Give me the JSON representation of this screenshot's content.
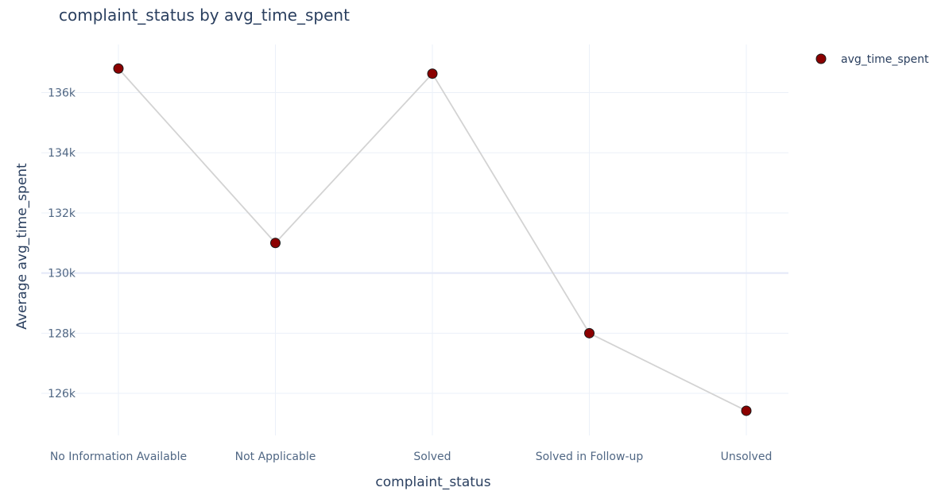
{
  "chart_data": {
    "type": "line",
    "title": "complaint_status by avg_time_spent",
    "xlabel": "complaint_status",
    "ylabel": "Average avg_time_spent",
    "categories": [
      "No Information Available",
      "Not Applicable",
      "Solved",
      "Solved in Follow-up",
      "Unsolved"
    ],
    "series": [
      {
        "name": "avg_time_spent",
        "values": [
          136800,
          131000,
          136630,
          128000,
          125420
        ]
      }
    ],
    "ylim": [
      124600,
      137600
    ],
    "yticks": [
      126000,
      128000,
      130000,
      132000,
      134000,
      136000
    ],
    "ytick_labels": [
      "126k",
      "128k",
      "130k",
      "132k",
      "134k",
      "136k"
    ],
    "grid": true,
    "legend_position": "top-right",
    "colors": {
      "marker_fill": "#8b0000",
      "marker_stroke": "#1a1a1a",
      "line": "#d3d3d3",
      "grid": "#ebf0f8",
      "zero_line": "#e3e8f8"
    }
  }
}
